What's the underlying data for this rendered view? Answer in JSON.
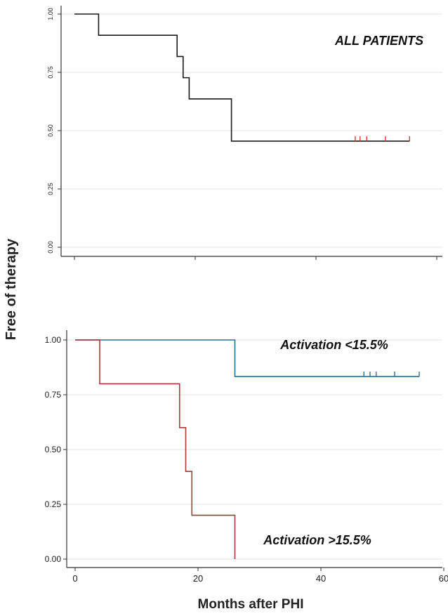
{
  "figure": {
    "ylabel": "Free of therapy",
    "xlabel": "Months after PHI"
  },
  "colors": {
    "all_patients": "#1a1a1a",
    "censor_marks_top": "#d93a3a",
    "low_activation": "#2f6d8f",
    "high_activation": "#a83a3a",
    "grid": "#e6e6e6",
    "axis": "#333333"
  },
  "chart_data": [
    {
      "type": "line",
      "subtype": "kaplan-meier step",
      "title": "",
      "xlim": [
        0,
        60
      ],
      "ylim": [
        0,
        1
      ],
      "x_ticks": [
        0,
        20,
        40,
        60
      ],
      "x_tick_labels_shown": false,
      "y_ticks": [
        "0.00",
        "0.25",
        "0.50",
        "0.75",
        "1.00"
      ],
      "y_tick_labels_rotated": true,
      "grid": true,
      "annotations": [
        {
          "text": "ALL  PATIENTS",
          "placement": "top-right"
        }
      ],
      "series": [
        {
          "steps": [
            [
              0,
              1.0
            ],
            [
              4,
              0.909
            ],
            [
              17,
              0.818
            ],
            [
              18,
              0.727
            ],
            [
              19,
              0.636
            ],
            [
              26,
              0.455
            ]
          ],
          "end_x": 55.5,
          "censored_x": [
            46.5,
            47.3,
            48.4,
            51.5,
            55.5
          ]
        }
      ]
    },
    {
      "type": "line",
      "subtype": "kaplan-meier step",
      "title": "",
      "xlim": [
        0,
        60
      ],
      "ylim": [
        0,
        1
      ],
      "x_ticks": [
        "0",
        "20",
        "40",
        "60"
      ],
      "x_tick_labels_shown": true,
      "y_ticks": [
        "0.00",
        "0.25",
        "0.50",
        "0.75",
        "1.00"
      ],
      "grid": true,
      "annotations": [
        {
          "text": "Activation <15.5%",
          "placement": "top-right"
        },
        {
          "text": "Activation >15.5%",
          "placement": "bottom-center"
        }
      ],
      "series": [
        {
          "steps": [
            [
              0,
              1.0
            ],
            [
              26,
              0.833
            ]
          ],
          "end_x": 56,
          "censored_x": [
            47,
            48,
            49,
            52,
            56
          ]
        },
        {
          "steps": [
            [
              0,
              1.0
            ],
            [
              4,
              0.8
            ],
            [
              17,
              0.6
            ],
            [
              18,
              0.4
            ],
            [
              19,
              0.2
            ],
            [
              26,
              0.0
            ]
          ],
          "end_x": 26,
          "censored_x": []
        }
      ]
    }
  ]
}
